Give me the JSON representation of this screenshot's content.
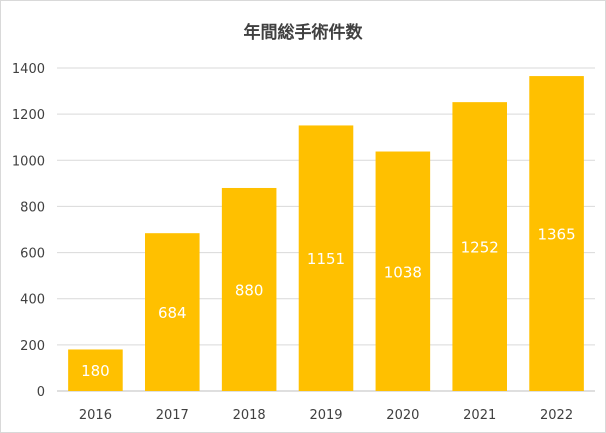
{
  "chart_data": {
    "type": "bar",
    "title": "年間総手術件数",
    "categories": [
      "2016",
      "2017",
      "2018",
      "2019",
      "2020",
      "2021",
      "2022"
    ],
    "values": [
      180,
      684,
      880,
      1151,
      1038,
      1252,
      1365
    ],
    "data_labels": [
      "180",
      "684",
      "880",
      "1151",
      "1038",
      "1252",
      "1365"
    ],
    "ylim": [
      0,
      1400
    ],
    "yticks": [
      0,
      200,
      400,
      600,
      800,
      1000,
      1200,
      1400
    ],
    "ytick_labels": [
      "0",
      "200",
      "400",
      "600",
      "800",
      "1000",
      "1200",
      "1400"
    ],
    "xlabel": "",
    "ylabel": "",
    "grid": true,
    "legend": "none",
    "bar_color": "#FFC000",
    "label_color": "#FFFFFF"
  }
}
